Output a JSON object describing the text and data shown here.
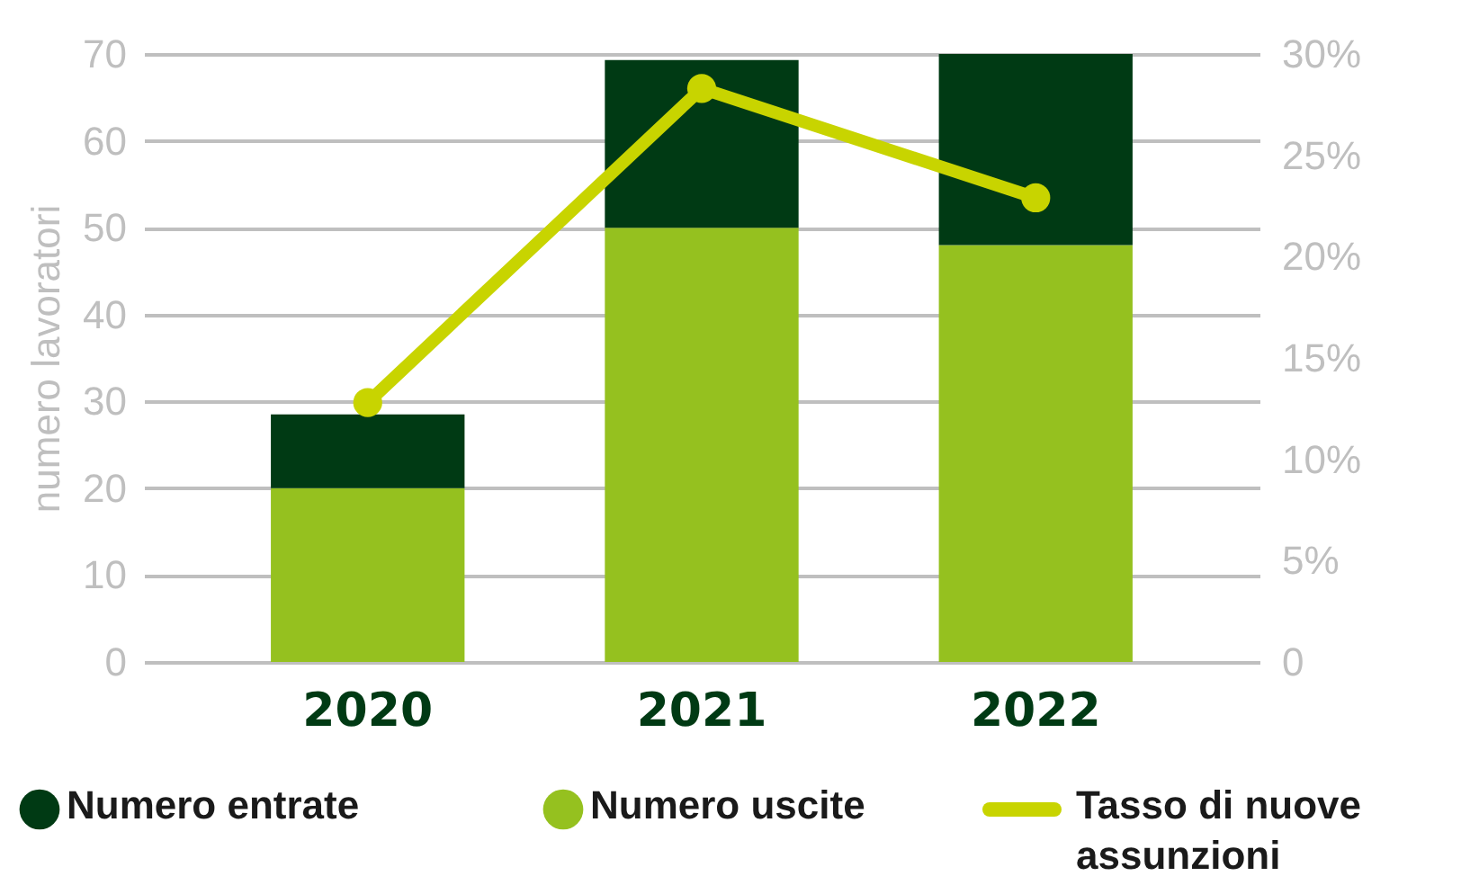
{
  "chart_data": {
    "type": "bar",
    "stacked": true,
    "ylabel": "numero lavoratori",
    "categories": [
      "2020",
      "2021",
      "2022"
    ],
    "series": [
      {
        "name": "Numero uscite",
        "color": "#95c11f",
        "values": [
          20,
          50,
          48
        ]
      },
      {
        "name": "Numero entrate",
        "color": "#003a14",
        "values": [
          8.5,
          19.3,
          22
        ]
      },
      {
        "name": "Tasso di  nuove assunzioni",
        "type": "line",
        "axis": "y2",
        "color": "#c8d400",
        "values": [
          12.8,
          28.3,
          22.9
        ]
      }
    ],
    "ylim": [
      0,
      70
    ],
    "yticks": [
      0,
      10,
      20,
      30,
      40,
      50,
      60,
      70
    ],
    "y2lim": [
      0,
      30
    ],
    "y2ticks": [
      {
        "value": 0,
        "label": "0"
      },
      {
        "value": 5,
        "label": "5%"
      },
      {
        "value": 10,
        "label": "10%"
      },
      {
        "value": 15,
        "label": "15%"
      },
      {
        "value": 20,
        "label": "20%"
      },
      {
        "value": 25,
        "label": "25%"
      },
      {
        "value": 30,
        "label": "30%"
      }
    ],
    "grid": "y",
    "legend": "bottom",
    "marker": "circle",
    "line_style": "solid"
  }
}
